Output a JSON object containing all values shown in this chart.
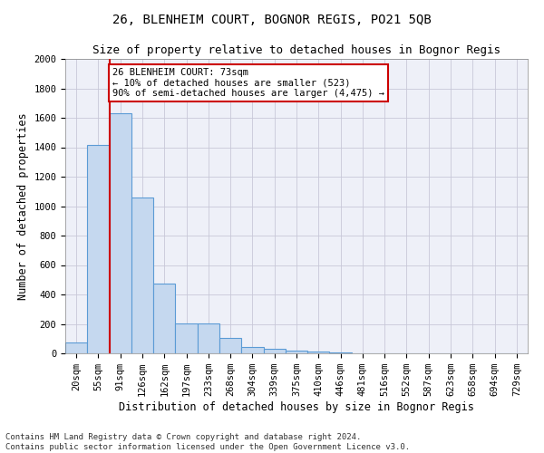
{
  "title": "26, BLENHEIM COURT, BOGNOR REGIS, PO21 5QB",
  "subtitle": "Size of property relative to detached houses in Bognor Regis",
  "xlabel": "Distribution of detached houses by size in Bognor Regis",
  "ylabel": "Number of detached properties",
  "bar_labels": [
    "20sqm",
    "55sqm",
    "91sqm",
    "126sqm",
    "162sqm",
    "197sqm",
    "233sqm",
    "268sqm",
    "304sqm",
    "339sqm",
    "375sqm",
    "410sqm",
    "446sqm",
    "481sqm",
    "516sqm",
    "552sqm",
    "587sqm",
    "623sqm",
    "658sqm",
    "694sqm",
    "729sqm"
  ],
  "bar_values": [
    75,
    1415,
    1630,
    1060,
    475,
    205,
    205,
    105,
    45,
    30,
    20,
    15,
    5,
    0,
    0,
    0,
    0,
    0,
    0,
    0,
    0
  ],
  "bar_color": "#c5d8ef",
  "bar_edge_color": "#5b9bd5",
  "vline_color": "#cc0000",
  "annotation_line1": "26 BLENHEIM COURT: 73sqm",
  "annotation_line2": "← 10% of detached houses are smaller (523)",
  "annotation_line3": "90% of semi-detached houses are larger (4,475) →",
  "annotation_box_color": "#ffffff",
  "annotation_box_edge": "#cc0000",
  "ylim": [
    0,
    2000
  ],
  "yticks": [
    0,
    200,
    400,
    600,
    800,
    1000,
    1200,
    1400,
    1600,
    1800,
    2000
  ],
  "footnote": "Contains HM Land Registry data © Crown copyright and database right 2024.\nContains public sector information licensed under the Open Government Licence v3.0.",
  "grid_color": "#c8c8d8",
  "bg_color": "#eef0f8",
  "title_fontsize": 10,
  "subtitle_fontsize": 9,
  "xlabel_fontsize": 8.5,
  "ylabel_fontsize": 8.5,
  "tick_fontsize": 7.5,
  "footnote_fontsize": 6.5
}
